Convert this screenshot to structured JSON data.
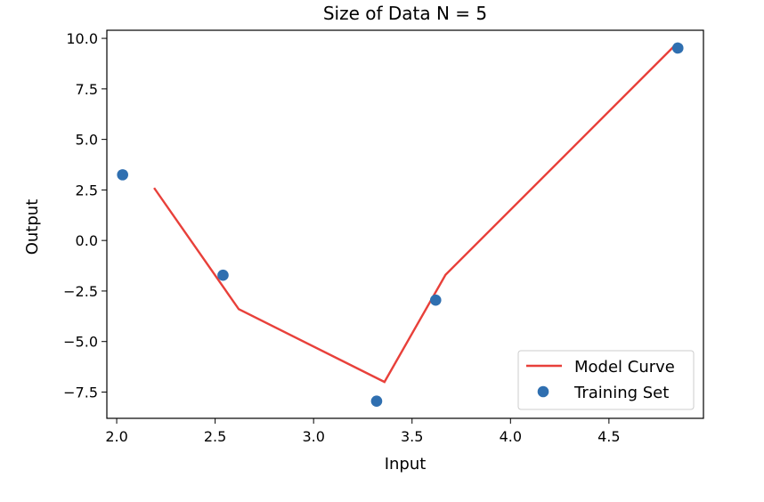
{
  "chart_data": {
    "type": "line",
    "title": "Size of Data N = 5",
    "xlabel": "Input",
    "ylabel": "Output",
    "xlim": [
      1.95,
      4.98
    ],
    "ylim": [
      -8.8,
      10.4
    ],
    "xticks": [
      2.0,
      2.5,
      3.0,
      3.5,
      4.0,
      4.5
    ],
    "xtick_labels": [
      "2.0",
      "2.5",
      "3.0",
      "3.5",
      "4.0",
      "4.5"
    ],
    "yticks": [
      10.0,
      7.5,
      5.0,
      2.5,
      0.0,
      -2.5,
      -5.0,
      -7.5
    ],
    "ytick_labels": [
      "10.0",
      "7.5",
      "5.0",
      "2.5",
      "0.0",
      "−2.5",
      "−5.0",
      "−7.5"
    ],
    "grid": false,
    "legend_position": "lower-right",
    "series": [
      {
        "name": "Model Curve",
        "kind": "line",
        "color": "#e8403a",
        "x": [
          2.19,
          2.62,
          3.36,
          3.67,
          4.84
        ],
        "y": [
          2.6,
          -3.4,
          -7.0,
          -1.7,
          9.7
        ]
      },
      {
        "name": "Training Set",
        "kind": "scatter",
        "color": "#2f6fb0",
        "x": [
          2.03,
          2.54,
          3.32,
          3.62,
          4.85
        ],
        "y": [
          3.25,
          -1.72,
          -7.95,
          -2.95,
          9.52
        ]
      }
    ]
  }
}
